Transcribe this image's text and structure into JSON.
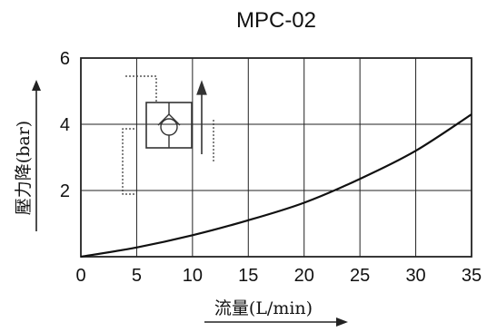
{
  "chart_data": {
    "type": "line",
    "title": "MPC-02",
    "xlabel": "流量(L/min)",
    "ylabel": "壓力降(bar)",
    "xlim": [
      0,
      35
    ],
    "ylim": [
      0,
      6
    ],
    "x_ticks": [
      "0",
      "5",
      "10",
      "15",
      "20",
      "25",
      "30",
      "35"
    ],
    "y_ticks": [
      "2",
      "4",
      "6"
    ],
    "grid": true,
    "series": [
      {
        "x": [
          0,
          5,
          10,
          15,
          20,
          25,
          30,
          35
        ],
        "y": [
          0,
          0.28,
          0.65,
          1.1,
          1.63,
          2.35,
          3.2,
          4.3
        ]
      }
    ],
    "colors": {
      "line": "#111111",
      "grid": "#222222",
      "inset": "#333333"
    },
    "inset_icon": "check-valve-symbol-icon"
  }
}
